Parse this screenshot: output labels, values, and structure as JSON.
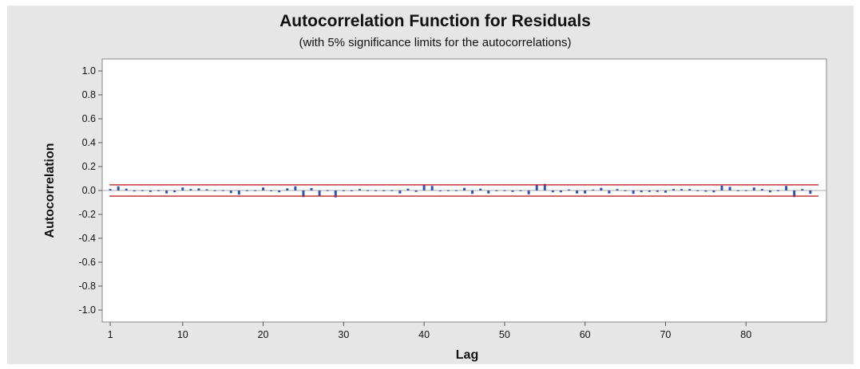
{
  "chart_data": {
    "type": "bar",
    "title": "Autocorrelation Function for Residuals",
    "subtitle": "(with 5% significance limits for the autocorrelations)",
    "xlabel": "Lag",
    "ylabel": "Autocorrelation",
    "xlim": [
      0,
      90
    ],
    "ylim": [
      -1.1,
      1.1
    ],
    "x_ticks": [
      1,
      10,
      20,
      30,
      40,
      50,
      60,
      70,
      80
    ],
    "x_tick_labels": [
      "1",
      "10",
      "20",
      "30",
      "40",
      "50",
      "60",
      "70",
      "80"
    ],
    "y_ticks": [
      1.0,
      0.8,
      0.6,
      0.4,
      0.2,
      0.0,
      -0.2,
      -0.4,
      -0.6,
      -0.8,
      -1.0
    ],
    "y_tick_labels": [
      "1.0",
      "0.8",
      "0.6",
      "0.4",
      "0.2",
      "0.0",
      "-0.2",
      "-0.4",
      "-0.6",
      "-0.8",
      "-1.0"
    ],
    "significance_limits": [
      0.047,
      -0.047
    ],
    "lags": [
      1,
      2,
      3,
      4,
      5,
      6,
      7,
      8,
      9,
      10,
      11,
      12,
      13,
      14,
      15,
      16,
      17,
      18,
      19,
      20,
      21,
      22,
      23,
      24,
      25,
      26,
      27,
      28,
      29,
      30,
      31,
      32,
      33,
      34,
      35,
      36,
      37,
      38,
      39,
      40,
      41,
      42,
      43,
      44,
      45,
      46,
      47,
      48,
      49,
      50,
      51,
      52,
      53,
      54,
      55,
      56,
      57,
      58,
      59,
      60,
      61,
      62,
      63,
      64,
      65,
      66,
      67,
      68,
      69,
      70,
      71,
      72,
      73,
      74,
      75,
      76,
      77,
      78,
      79,
      80,
      81,
      82,
      83,
      84,
      85,
      86,
      87,
      88
    ],
    "values": [
      0.012,
      0.035,
      0.015,
      -0.008,
      0.003,
      -0.012,
      0.002,
      -0.025,
      -0.015,
      0.025,
      0.012,
      0.018,
      0.01,
      0.002,
      0.003,
      -0.022,
      -0.035,
      0.002,
      0.003,
      0.025,
      0.001,
      -0.015,
      0.018,
      0.035,
      -0.055,
      0.02,
      -0.045,
      0.003,
      -0.058,
      0.002,
      0.002,
      0.012,
      0.003,
      0.002,
      0.002,
      0.003,
      -0.025,
      0.015,
      -0.012,
      0.045,
      0.038,
      -0.008,
      0.002,
      0.003,
      0.022,
      -0.028,
      0.015,
      -0.025,
      0.002,
      0.003,
      -0.012,
      0.002,
      -0.032,
      0.048,
      0.055,
      -0.015,
      -0.015,
      0.008,
      -0.025,
      -0.025,
      0.008,
      0.022,
      -0.025,
      0.012,
      0.002,
      -0.028,
      -0.015,
      -0.012,
      -0.012,
      -0.018,
      0.012,
      0.012,
      0.012,
      0.002,
      -0.01,
      -0.015,
      0.04,
      0.03,
      0.002,
      0.003,
      0.025,
      0.012,
      -0.015,
      0.002,
      0.038,
      -0.055,
      0.012,
      -0.028
    ],
    "colors": {
      "bars": "#2f55a4",
      "limits": "#c0262c",
      "zero_line": "#a8a8a8",
      "panel": "#ffffff",
      "frame": "#e6e6e6",
      "axis": "#555555"
    }
  }
}
